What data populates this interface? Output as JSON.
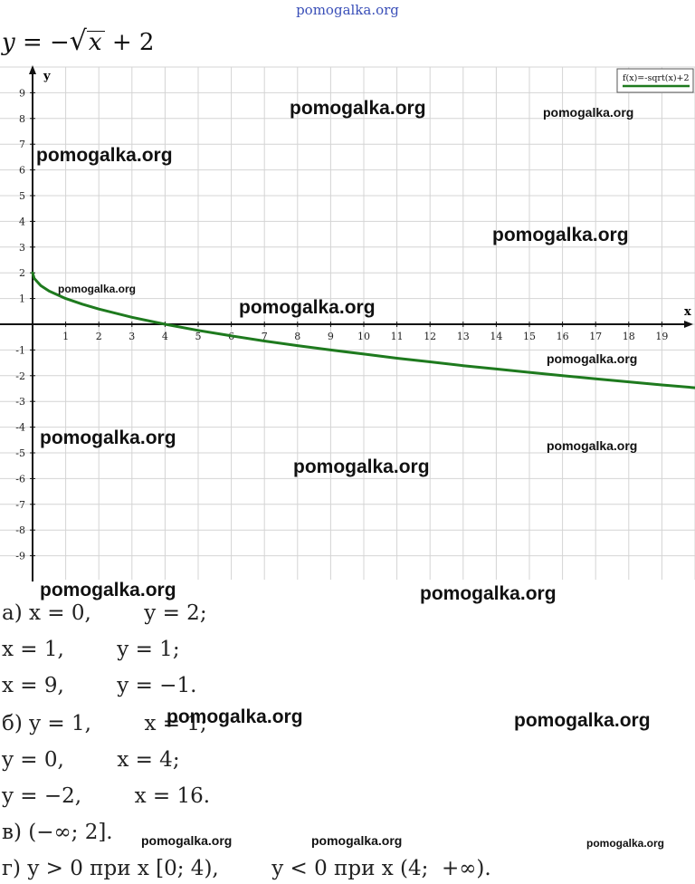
{
  "site_header": "pomogalka.org",
  "formula": {
    "lhs": "y = −",
    "radicand": "x",
    "rhs": "+ 2"
  },
  "chart_data": {
    "type": "line",
    "function_label": "f(x)=-sqrt(x)+2",
    "xlabel": "x",
    "ylabel": "y",
    "xlim": [
      0,
      20
    ],
    "ylim": [
      -10,
      10
    ],
    "x_ticks": [
      1,
      2,
      3,
      4,
      5,
      6,
      7,
      8,
      9,
      10,
      11,
      12,
      13,
      14,
      15,
      16,
      17,
      18,
      19
    ],
    "y_ticks": [
      9,
      8,
      7,
      6,
      5,
      4,
      3,
      2,
      1,
      -1,
      -2,
      -3,
      -4,
      -5,
      -6,
      -7,
      -8,
      -9
    ],
    "grid": true,
    "legend": "top-right",
    "series": [
      {
        "name": "f(x)=-sqrt(x)+2",
        "color": "#1e7a1e",
        "x": [
          0,
          0.05,
          0.25,
          0.5,
          1,
          1.5,
          2,
          3,
          4,
          5,
          6,
          7,
          8,
          9,
          10,
          11,
          12,
          13,
          14,
          15,
          16,
          17,
          18,
          19,
          20
        ],
        "y": [
          2,
          1.78,
          1.5,
          1.29,
          1,
          0.78,
          0.59,
          0.27,
          0,
          -0.24,
          -0.45,
          -0.65,
          -0.83,
          -1,
          -1.16,
          -1.32,
          -1.46,
          -1.61,
          -1.74,
          -1.87,
          -2,
          -2.12,
          -2.24,
          -2.36,
          -2.47
        ]
      }
    ]
  },
  "watermark_text": "pomogalka.org",
  "answers": [
    "а) x = 0,        y = 2;",
    "x = 1,        y = 1;",
    "x = 9,        y = −1.",
    "б) y = 1,        x = 1;",
    "y = 0,        x = 4;",
    "y = −2,        x = 16.",
    "в) (−∞; 2].",
    "г) y > 0 при x [0; 4),        y < 0 при x (4;  +∞)."
  ]
}
